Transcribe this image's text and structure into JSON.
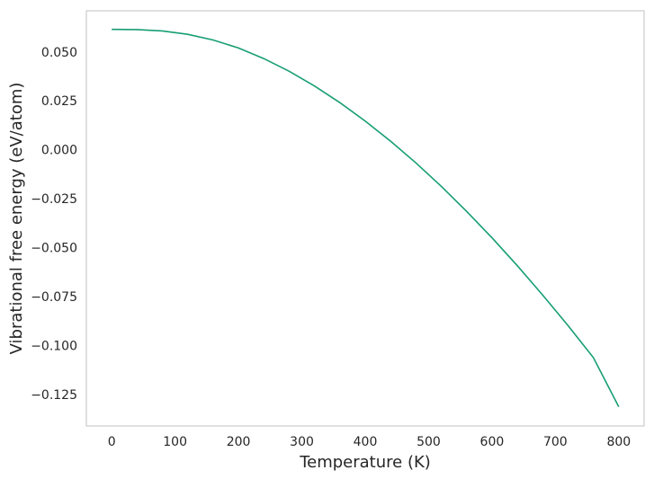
{
  "chart_data": {
    "type": "line",
    "title": "",
    "xlabel": "Temperature (K)",
    "ylabel": "Vibrational free energy (eV/atom)",
    "xlim": [
      -40,
      840
    ],
    "ylim": [
      -0.141,
      0.071
    ],
    "xticks": [
      0,
      100,
      200,
      300,
      400,
      500,
      600,
      700,
      800
    ],
    "xtick_labels": [
      "0",
      "100",
      "200",
      "300",
      "400",
      "500",
      "600",
      "700",
      "800"
    ],
    "yticks": [
      0.05,
      0.025,
      0.0,
      -0.025,
      -0.05,
      -0.075,
      -0.1,
      -0.125
    ],
    "ytick_labels": [
      "0.050",
      "0.025",
      "0.000",
      "−0.025",
      "−0.050",
      "−0.075",
      "−0.100",
      "−0.125"
    ],
    "grid": false,
    "legend": false,
    "colors": {
      "line": "#169e74",
      "frame": "#cccccc",
      "text": "#262626"
    },
    "series": [
      {
        "x": [
          0,
          40,
          80,
          120,
          160,
          200,
          240,
          280,
          320,
          360,
          400,
          440,
          480,
          520,
          560,
          600,
          640,
          680,
          720,
          760,
          800
        ],
        "values": [
          0.0615,
          0.0614,
          0.0607,
          0.059,
          0.0561,
          0.052,
          0.0466,
          0.0401,
          0.0326,
          0.0241,
          0.0147,
          0.0044,
          -0.0067,
          -0.0186,
          -0.0314,
          -0.0449,
          -0.0592,
          -0.0742,
          -0.0898,
          -0.1061,
          -0.1312
        ]
      }
    ]
  }
}
